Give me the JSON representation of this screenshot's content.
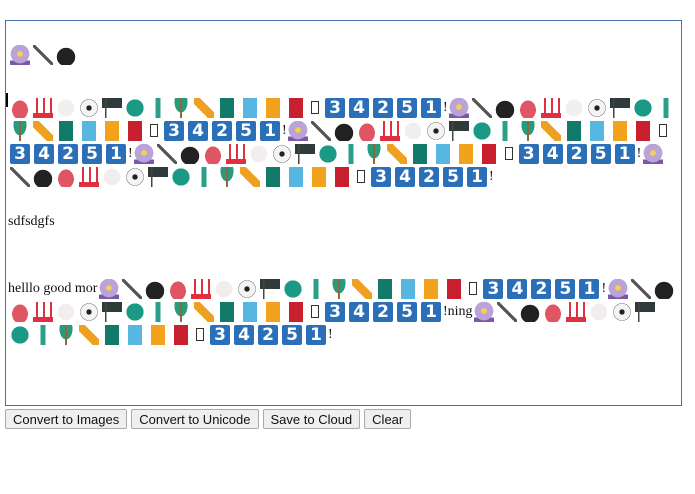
{
  "unit": [
    "crystal-ball",
    "kitchen-knife",
    "bomb",
    "telephone",
    "hot-springs",
    "baseball",
    "soccer-ball",
    "black-flag",
    "four-leaf-clover",
    "cactus",
    "palm-tree",
    "straight-ruler",
    "green-book",
    "blue-book",
    "orange-book",
    "red-book",
    "missing-glyph",
    "keycap-3",
    "keycap-4",
    "keycap-2",
    "keycap-5",
    "keycap-1",
    "!"
  ],
  "editor": {
    "paragraphs": [
      [
        {
          "text": " "
        },
        {
          "unit_range": [
            0,
            3
          ]
        }
      ],
      [
        {
          "unit_range": [
            3,
            23
          ]
        },
        {
          "unit": true
        },
        {
          "unit": true
        },
        {
          "unit": true
        },
        {
          "unit": true
        }
      ],
      [
        {
          "text": "sdfsdgfs"
        }
      ],
      [
        {
          "text": "helllo good mor"
        },
        {
          "unit": true
        },
        {
          "unit": true
        },
        {
          "text": "ning"
        },
        {
          "unit": true
        }
      ]
    ]
  },
  "toolbar": {
    "convert_images": "Convert to Images",
    "convert_unicode": "Convert to Unicode",
    "save_cloud": "Save to Cloud",
    "clear": "Clear"
  },
  "colors": {
    "border": "#4a6fae",
    "keycap": "#2a6fb8"
  }
}
